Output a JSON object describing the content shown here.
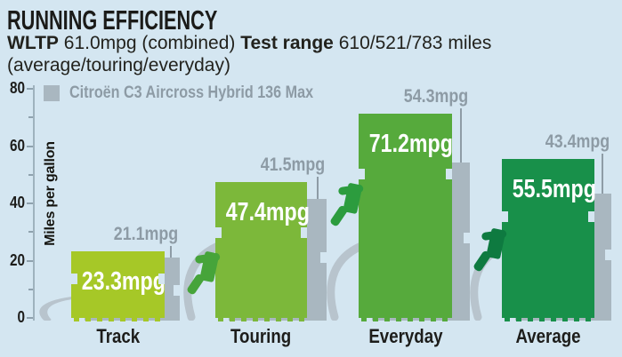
{
  "header": {
    "title": "RUNNING EFFICIENCY",
    "wltp_label": "WLTP",
    "wltp_value": " 61.0mpg (combined) ",
    "test_range_label": "Test range",
    "test_range_value": " 610/521/783 miles",
    "subtitle_line2": "(average/touring/everyday)"
  },
  "legend": {
    "label": "Citroën C3 Aircross Hybrid 136 Max",
    "swatch_color": "#a9b7c0"
  },
  "chart_data": {
    "type": "bar",
    "title": "RUNNING EFFICIENCY",
    "categories": [
      "Track",
      "Touring",
      "Everyday",
      "Average"
    ],
    "series": [
      {
        "name": "",
        "values": [
          23.3,
          47.4,
          71.2,
          55.5
        ],
        "labels": [
          "23.3mpg",
          "47.4mpg",
          "71.2mpg",
          "55.5mpg"
        ],
        "colors": [
          "#a6c827",
          "#7cb83a",
          "#56aa3c",
          "#18904a"
        ],
        "nozzle_colors": [
          "#8fae1f",
          "#46a43a",
          "#2c9c3e",
          "#0e7a40"
        ],
        "label_color": "#ffffff"
      },
      {
        "name": "Citroën C3 Aircross Hybrid 136 Max",
        "values": [
          21.1,
          41.5,
          54.3,
          43.4
        ],
        "labels": [
          "21.1mpg",
          "41.5mpg",
          "54.3mpg",
          "43.4mpg"
        ],
        "color": "#a9b7c0",
        "label_color": "#8d9ba5"
      }
    ],
    "ylabel": "Miles per gallon",
    "ylim": [
      0,
      80
    ],
    "yticks": [
      0,
      20,
      40,
      60,
      80
    ],
    "grid": false,
    "legend_position": "top-left"
  },
  "colors": {
    "background": "#d4e6f1",
    "text": "#1d1d1b",
    "axis": "#9fb2bd",
    "pump_gray": "#a9b7c0",
    "gray_text": "#8d9ba5",
    "hose": "#b8c4cd"
  }
}
